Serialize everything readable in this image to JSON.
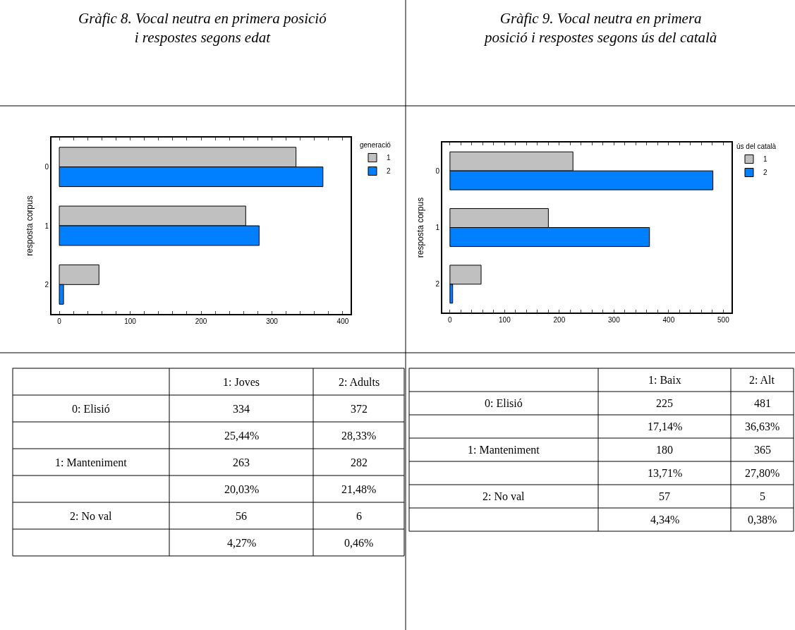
{
  "chart_data": [
    {
      "type": "bar",
      "orientation": "horizontal",
      "title": "Gràfic 8. Vocal neutra en primera posició\ni respostes segons edat",
      "ylabel": "resposta corpus",
      "legend_title": "generació",
      "legend": "top right",
      "categories": [
        "0",
        "1",
        "2"
      ],
      "series": [
        {
          "name": "1",
          "color": "#c0c0c0",
          "values": [
            334,
            263,
            56
          ]
        },
        {
          "name": "2",
          "color": "#0080ff",
          "values": [
            372,
            282,
            6
          ]
        }
      ],
      "xlim": [
        -11,
        411
      ],
      "xticks": [
        0,
        {
          "value": 20,
          "label": null
        },
        {
          "value": 40,
          "label": null
        },
        {
          "value": 60,
          "label": null
        },
        {
          "value": 80,
          "label": null
        },
        100,
        {
          "value": 120,
          "label": null
        },
        {
          "value": 140,
          "label": null
        },
        {
          "value": 160,
          "label": null
        },
        {
          "value": 180,
          "label": null
        },
        200,
        {
          "value": 220,
          "label": null
        },
        {
          "value": 240,
          "label": null
        },
        {
          "value": 260,
          "label": null
        },
        {
          "value": 280,
          "label": null
        },
        300,
        {
          "value": 320,
          "label": null
        },
        {
          "value": 340,
          "label": null
        },
        {
          "value": 360,
          "label": null
        },
        {
          "value": 380,
          "label": null
        },
        400
      ],
      "annotations": [
        "1: Joves",
        "2: Adults",
        "0: Elisió",
        "334",
        "372",
        "25,44%",
        "28,33%",
        "1: Manteniment",
        "263",
        "282",
        "20,03%",
        "21,48%",
        "2: No val",
        "56",
        "6",
        "4,27%",
        "0,46%"
      ]
    },
    {
      "type": "bar",
      "orientation": "horizontal",
      "title": "Gràfic 9. Vocal neutra en primera\nposició i respostes segons ús del català",
      "ylabel": "resposta corpus",
      "legend_title": "ús del català",
      "legend": "top right",
      "categories": [
        "0",
        "1",
        "2"
      ],
      "series": [
        {
          "name": "1",
          "color": "#c0c0c0",
          "values": [
            225,
            180,
            57
          ]
        },
        {
          "name": "2",
          "color": "#0080ff",
          "values": [
            481,
            365,
            5
          ]
        }
      ],
      "xlim": [
        -14,
        515
      ],
      "xticks": [
        0,
        {
          "value": 20,
          "label": null
        },
        {
          "value": 40,
          "label": null
        },
        {
          "value": 60,
          "label": null
        },
        {
          "value": 80,
          "label": null
        },
        100,
        {
          "value": 120,
          "label": null
        },
        {
          "value": 140,
          "label": null
        },
        {
          "value": 160,
          "label": null
        },
        {
          "value": 180,
          "label": null
        },
        200,
        {
          "value": 220,
          "label": null
        },
        {
          "value": 240,
          "label": null
        },
        {
          "value": 260,
          "label": null
        },
        {
          "value": 280,
          "label": null
        },
        300,
        {
          "value": 320,
          "label": null
        },
        {
          "value": 340,
          "label": null
        },
        {
          "value": 360,
          "label": null
        },
        {
          "value": 380,
          "label": null
        },
        400,
        {
          "value": 420,
          "label": null
        },
        {
          "value": 440,
          "label": null
        },
        {
          "value": 460,
          "label": null
        },
        {
          "value": 480,
          "label": null
        },
        500
      ],
      "annotations": [
        "1: Baix",
        "2: Alt",
        "0: Elisió",
        "225",
        "481",
        "17,14%",
        "36,63%",
        "1: Manteniment",
        "180",
        "365",
        "13,71%",
        "27,80%",
        "2: No val",
        "57",
        "5",
        "4,34%",
        "0,38%"
      ]
    }
  ]
}
